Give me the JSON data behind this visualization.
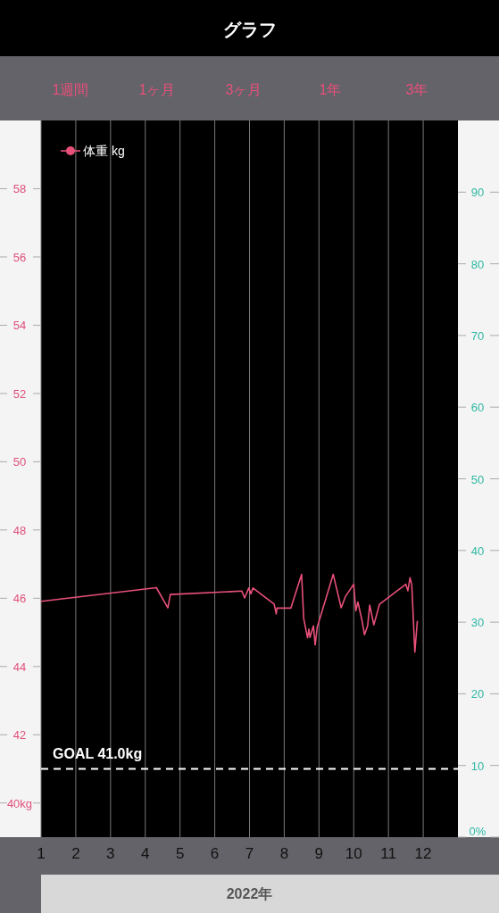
{
  "chart_data": {
    "type": "line",
    "title": "グラフ",
    "annotations": [
      "1週間",
      "1ヶ月",
      "3ヶ月",
      "1年",
      "3年"
    ],
    "xlabel": "2022年",
    "xlim": [
      1,
      13
    ],
    "xticks": [
      1,
      2,
      3,
      4,
      5,
      6,
      7,
      8,
      9,
      10,
      11,
      12
    ],
    "ylim": [
      39,
      60
    ],
    "yticks": [
      {
        "value": 40,
        "label": "40kg"
      },
      42,
      44,
      46,
      48,
      50,
      52,
      54,
      56,
      58
    ],
    "y2lim": [
      0,
      100
    ],
    "y2ticks": [
      {
        "value": 0,
        "label": "0%"
      },
      10,
      20,
      30,
      40,
      50,
      60,
      70,
      80,
      90
    ],
    "grid": "x",
    "legend": "top left",
    "ref_lines": [
      {
        "axis": "y",
        "value": 41.0,
        "label": "GOAL 41.0kg",
        "color": "#ffffff",
        "line_style": "dashed"
      }
    ],
    "series": [
      {
        "name": "体重 kg",
        "color": "#e8507a",
        "x": [
          1.01,
          4.32,
          4.65,
          4.72,
          6.78,
          6.86,
          6.98,
          7.04,
          7.1,
          7.71,
          7.77,
          7.79,
          8.19,
          8.5,
          8.56,
          8.67,
          8.71,
          8.74,
          8.84,
          8.89,
          8.95,
          9.41,
          9.64,
          9.76,
          10.0,
          10.06,
          10.12,
          10.24,
          10.31,
          10.4,
          10.46,
          10.58,
          10.74,
          11.5,
          11.56,
          11.62,
          11.67,
          11.76,
          11.83
        ],
        "values": [
          45.91,
          46.31,
          45.72,
          46.11,
          46.21,
          46.01,
          46.3,
          46.13,
          46.3,
          45.83,
          45.54,
          45.71,
          45.71,
          46.7,
          45.41,
          44.84,
          45.1,
          44.85,
          45.19,
          44.63,
          45.15,
          46.7,
          45.72,
          46.05,
          46.41,
          45.63,
          45.89,
          45.34,
          44.93,
          45.19,
          45.8,
          45.22,
          45.82,
          46.41,
          46.22,
          46.6,
          46.41,
          44.42,
          45.32
        ]
      }
    ]
  }
}
